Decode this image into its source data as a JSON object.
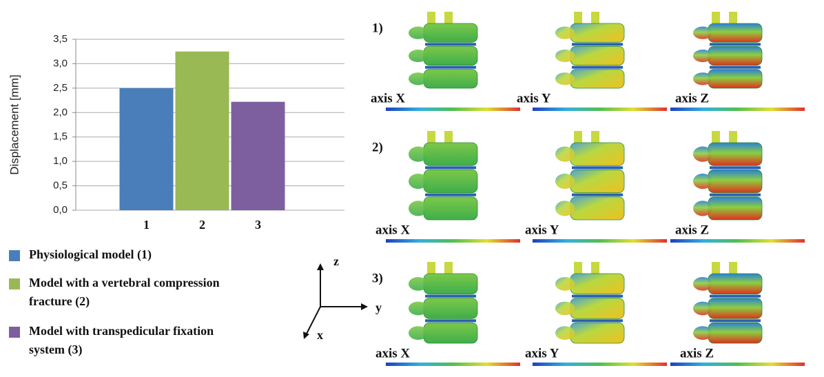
{
  "chart_data": {
    "type": "bar",
    "ylabel": "Displacement [mm]",
    "categories": [
      "1",
      "2",
      "3"
    ],
    "series": [
      {
        "name": "Physiological model  (1)",
        "color": "#4a7ebb",
        "values": [
          2.5,
          null,
          null
        ]
      },
      {
        "name": "Model with a vertebral compression fracture (2)",
        "color": "#98b954",
        "values": [
          null,
          3.25,
          null
        ]
      },
      {
        "name": "Model with transpedicular fixation system (3)",
        "color": "#7d5fa0",
        "values": [
          null,
          null,
          2.22
        ]
      }
    ],
    "ylim": [
      0,
      3.5
    ],
    "yticks": [
      {
        "value": 0,
        "label": "0,0"
      },
      {
        "value": 0.5,
        "label": "0,5"
      },
      {
        "value": 1,
        "label": "1,0"
      },
      {
        "value": 1.5,
        "label": "1,5"
      },
      {
        "value": 2,
        "label": "2,0"
      },
      {
        "value": 2.5,
        "label": "2,5"
      },
      {
        "value": 3,
        "label": "3,0"
      },
      {
        "value": 3.5,
        "label": "3,5"
      }
    ],
    "grid": true
  },
  "panels": {
    "rows": [
      "1)",
      "2)",
      "3)"
    ],
    "axes": [
      "axis X",
      "axis Y",
      "axis Z"
    ]
  },
  "triad": [
    "z",
    "y",
    "x"
  ]
}
